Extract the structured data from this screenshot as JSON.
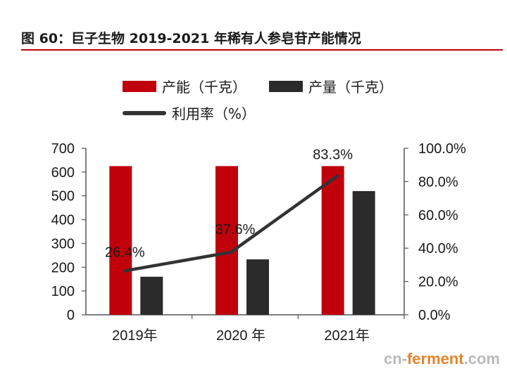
{
  "title": "图 60：巨子生物 2019-2021 年稀有人参皂苷产能情况",
  "legend": {
    "capacity": "产能（千克）",
    "output": "产量（千克）",
    "utilization": "利用率（%）"
  },
  "colors": {
    "capacity": "#c0000b",
    "output": "#2b2b2b",
    "utilization": "#333333",
    "title_rule": "#c0000b"
  },
  "chart_data": {
    "type": "bar",
    "title": "巨子生物 2019-2021 年稀有人参皂苷产能情况",
    "categories": [
      "2019年",
      "2020 年",
      "2021年"
    ],
    "series": [
      {
        "name": "产能（千克）",
        "type": "bar",
        "axis": "left",
        "values": [
          625,
          625,
          625
        ]
      },
      {
        "name": "产量（千克）",
        "type": "bar",
        "axis": "left",
        "values": [
          160,
          233,
          520
        ]
      },
      {
        "name": "利用率（%）",
        "type": "line",
        "axis": "right",
        "values": [
          26.4,
          37.6,
          83.3
        ]
      }
    ],
    "data_labels": [
      "26.4%",
      "37.6%",
      "83.3%"
    ],
    "ylim_left": [
      0,
      700
    ],
    "ylim_right": [
      0,
      100
    ],
    "yticks_left": [
      "0",
      "100",
      "200",
      "300",
      "400",
      "500",
      "600",
      "700"
    ],
    "yticks_right": [
      "0.0%",
      "20.0%",
      "40.0%",
      "60.0%",
      "80.0%",
      "100.0%"
    ],
    "xlabel": "",
    "ylabel": "",
    "ylabel_right": "",
    "grid": false,
    "legend_position": "top"
  },
  "watermark": {
    "prefix": "cn-",
    "brand": "ferment",
    "suffix": ".com"
  }
}
